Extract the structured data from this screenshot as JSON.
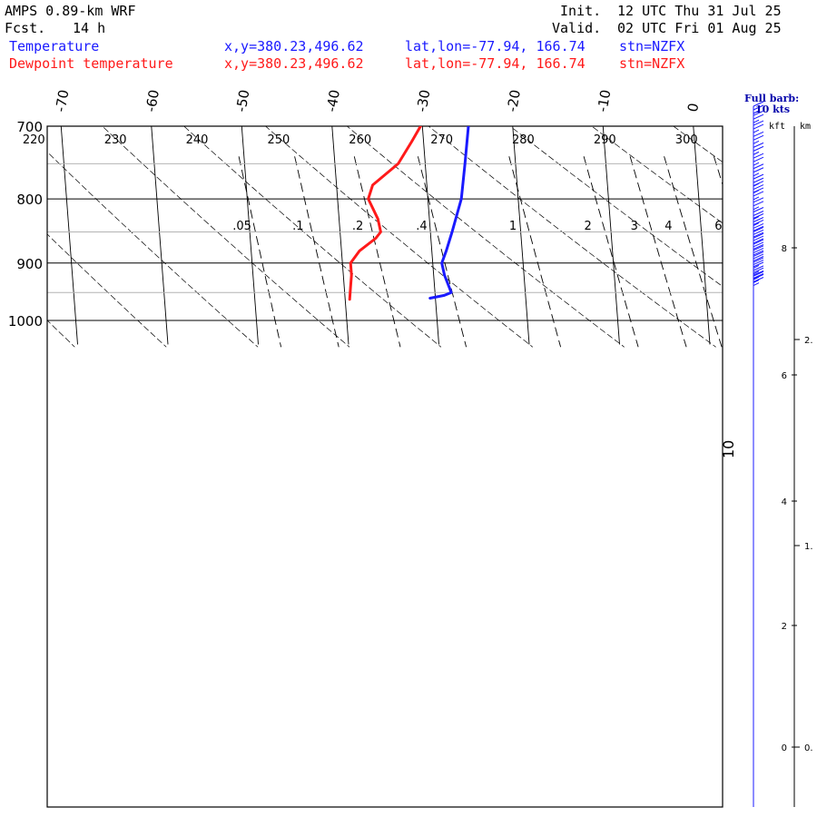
{
  "header": {
    "model": "AMPS 0.89-km WRF",
    "forecast_label": "Fcst.",
    "forecast_hours": "14 h",
    "init_label": "Init.",
    "init_time": "12 UTC Thu 31 Jul 25",
    "valid_label": "Valid.",
    "valid_time": "02 UTC Fri 01 Aug 25"
  },
  "legend": [
    {
      "name": "Temperature",
      "xy": "x,y=380.23,496.62",
      "latlon": "lat,lon=-77.94, 166.74",
      "stn": "stn=NZFX",
      "color": "#1a1aff"
    },
    {
      "name": "Dewpoint temperature",
      "xy": "x,y=380.23,496.62",
      "latlon": "lat,lon=-77.94, 166.74",
      "stn": "stn=NZFX",
      "color": "#ff1a1a"
    }
  ],
  "wind_panel": {
    "title_line1": "Full barb:",
    "title_line2": "10 kts",
    "kft_label": "kft",
    "km_label": "km",
    "kft_ticks": [
      "8",
      "6",
      "4",
      "2",
      "0"
    ],
    "km_ticks": [
      "2.",
      "1.",
      "0."
    ]
  },
  "chart_data": {
    "type": "line",
    "title": "",
    "ylabel": "",
    "xlabel": "",
    "pressure_ticks": [
      700,
      800,
      900,
      1000
    ],
    "pressure_range": [
      700,
      1045
    ],
    "temperature_range": [
      -40,
      5
    ],
    "isotherm_labels": [
      "-70",
      "-60",
      "-50",
      "-40",
      "-30",
      "-20",
      "-10",
      "0"
    ],
    "isotherm_label_values": [
      -70,
      -60,
      -50,
      -40,
      -30,
      -20,
      -10,
      0
    ],
    "theta_labels": [
      "220",
      "230",
      "240",
      "250",
      "260",
      "270",
      "280",
      "290",
      "300"
    ],
    "theta_values": [
      220,
      230,
      240,
      250,
      260,
      270,
      280,
      290,
      300
    ],
    "mixing_ratio_labels": [
      ".05",
      ".1",
      ".2",
      ".4",
      "1",
      "2",
      "3",
      "4",
      "6"
    ],
    "mixing_ratio_values": [
      0.05,
      0.1,
      0.2,
      0.4,
      1,
      2,
      3,
      4,
      6
    ],
    "annotation": "10",
    "grid": true,
    "series": [
      {
        "name": "Temperature",
        "color": "#1a1aff",
        "points": [
          {
            "p": 960,
            "t": -30.6
          },
          {
            "p": 955,
            "t": -29.0
          },
          {
            "p": 950,
            "t": -28.2
          },
          {
            "p": 920,
            "t": -28.8
          },
          {
            "p": 900,
            "t": -29.0
          },
          {
            "p": 880,
            "t": -28.4
          },
          {
            "p": 850,
            "t": -27.6
          },
          {
            "p": 800,
            "t": -26.3
          },
          {
            "p": 750,
            "t": -25.6
          },
          {
            "p": 700,
            "t": -24.9
          }
        ]
      },
      {
        "name": "Dewpoint temperature",
        "color": "#ff1a1a",
        "points": [
          {
            "p": 962,
            "t": -39.5
          },
          {
            "p": 940,
            "t": -39.3
          },
          {
            "p": 920,
            "t": -39.1
          },
          {
            "p": 900,
            "t": -39.1
          },
          {
            "p": 880,
            "t": -38.0
          },
          {
            "p": 860,
            "t": -36.1
          },
          {
            "p": 850,
            "t": -35.5
          },
          {
            "p": 830,
            "t": -35.7
          },
          {
            "p": 800,
            "t": -36.6
          },
          {
            "p": 780,
            "t": -36.0
          },
          {
            "p": 750,
            "t": -33.0
          },
          {
            "p": 720,
            "t": -31.3
          },
          {
            "p": 700,
            "t": -30.2
          }
        ]
      }
    ],
    "wind_barbs": [
      {
        "p": 960,
        "speed_kt": 25
      },
      {
        "p": 955,
        "speed_kt": 25
      },
      {
        "p": 950,
        "speed_kt": 25
      },
      {
        "p": 940,
        "speed_kt": 25
      },
      {
        "p": 930,
        "speed_kt": 25
      },
      {
        "p": 920,
        "speed_kt": 30
      },
      {
        "p": 910,
        "speed_kt": 30
      },
      {
        "p": 900,
        "speed_kt": 30
      },
      {
        "p": 890,
        "speed_kt": 30
      },
      {
        "p": 880,
        "speed_kt": 30
      },
      {
        "p": 870,
        "speed_kt": 30
      },
      {
        "p": 860,
        "speed_kt": 25
      },
      {
        "p": 850,
        "speed_kt": 25
      },
      {
        "p": 835,
        "speed_kt": 25
      },
      {
        "p": 820,
        "speed_kt": 25
      },
      {
        "p": 810,
        "speed_kt": 25
      },
      {
        "p": 800,
        "speed_kt": 25
      },
      {
        "p": 785,
        "speed_kt": 25
      },
      {
        "p": 770,
        "speed_kt": 25
      },
      {
        "p": 755,
        "speed_kt": 25
      },
      {
        "p": 740,
        "speed_kt": 25
      },
      {
        "p": 725,
        "speed_kt": 25
      },
      {
        "p": 712,
        "speed_kt": 25
      },
      {
        "p": 700,
        "speed_kt": 25
      }
    ]
  }
}
